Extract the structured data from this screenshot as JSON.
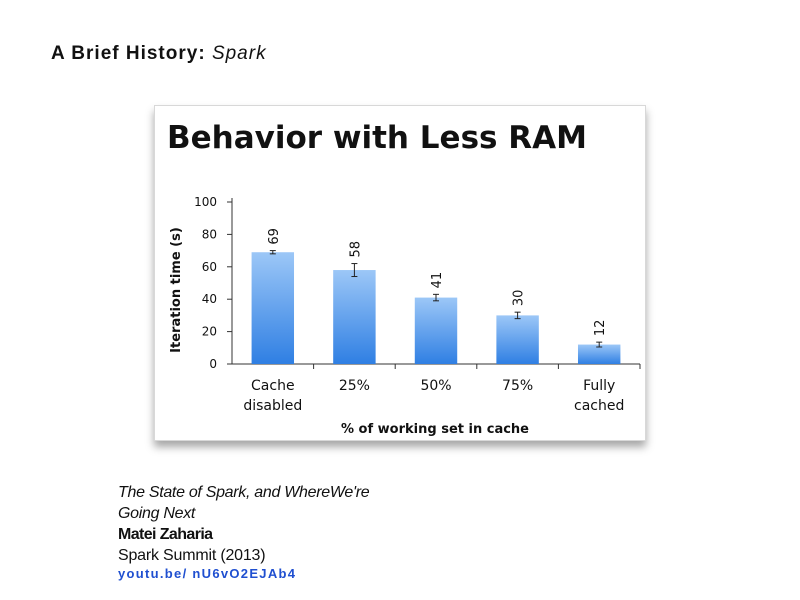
{
  "slide": {
    "title_main": "A Brief History:",
    "title_accent": "Spark"
  },
  "citation": {
    "talk_title_line1": "The State of Spark, and WhereWe're",
    "talk_title_line2": "Going Next",
    "author": "Matei Zaharia",
    "venue": "Spark Summit (2013)",
    "link": "youtu.be/ nU6vO2EJAb4"
  },
  "colors": {
    "bar_top": "#9cc7f7",
    "bar_bottom": "#2f7fe3",
    "axis": "#333333"
  },
  "chart_data": {
    "type": "bar",
    "title": "Behavior with Less RAM",
    "xlabel": "% of working set in cache",
    "ylabel": "Iteration time (s)",
    "ylim": [
      0,
      100
    ],
    "yticks": [
      0,
      20,
      40,
      60,
      80,
      100
    ],
    "categories": [
      [
        "Cache",
        "disabled"
      ],
      [
        "25%"
      ],
      [
        "50%"
      ],
      [
        "75%"
      ],
      [
        "Fully",
        "cached"
      ]
    ],
    "values": [
      69,
      58,
      41,
      30,
      12
    ],
    "data_labels": [
      "69",
      "58",
      "41",
      "30",
      "12"
    ],
    "error_bars": [
      1,
      4,
      2,
      2,
      1.5
    ],
    "grid": false,
    "legend": "none"
  }
}
